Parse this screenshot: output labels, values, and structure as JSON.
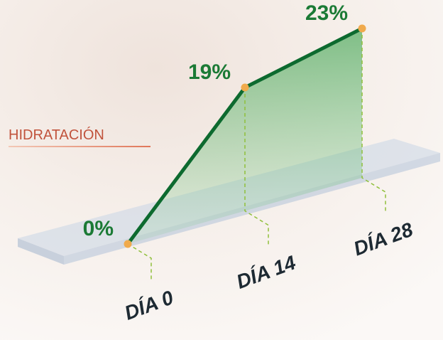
{
  "chart_data": {
    "type": "line",
    "categories": [
      "DÍA 0",
      "DÍA 14",
      "DÍA 28"
    ],
    "series": [
      {
        "name": "HIDRATACIÓN",
        "color": "#0d6a2f",
        "values": [
          0,
          19,
          23
        ],
        "value_labels": [
          "0%",
          "19%",
          "23%"
        ]
      }
    ],
    "ylim": [
      0,
      23
    ]
  }
}
